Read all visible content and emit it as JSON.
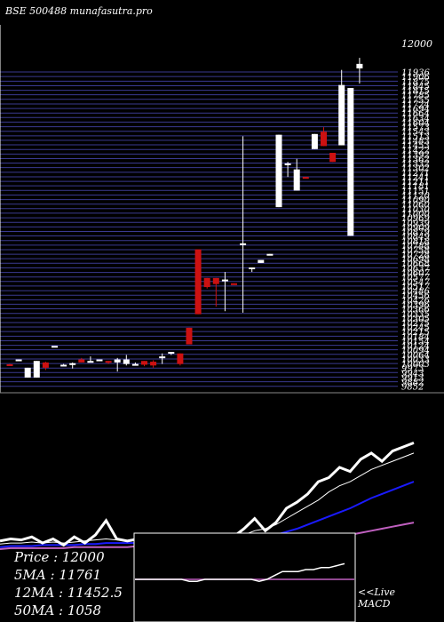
{
  "header": {
    "title": "BSE 500488  munafasutra.pro"
  },
  "chart_data": {
    "type": "candlestick",
    "price_axis": {
      "ylim": [
        9821,
        12060
      ],
      "top_label": "12000",
      "ticks": [
        11936,
        11906,
        11875,
        11845,
        11815,
        11785,
        11755,
        11724,
        11694,
        11664,
        11634,
        11604,
        11573,
        11543,
        11513,
        11483,
        11453,
        11422,
        11392,
        11362,
        11332,
        11302,
        11271,
        11241,
        11211,
        11181,
        11151,
        11120,
        11090,
        11060,
        11030,
        11000,
        10969,
        10939,
        10909,
        10879,
        10849,
        10818,
        10788,
        10758,
        10728,
        10698,
        10668,
        10637,
        10607,
        10577,
        10547,
        10517,
        10486,
        10456,
        10426,
        10396,
        10366,
        10335,
        10305,
        10275,
        10245,
        10215,
        10184,
        10154,
        10124,
        10094,
        10064,
        10033,
        10003,
        9973,
        9943,
        9913,
        9882,
        9852
      ]
    },
    "candles": [
      {
        "o": 9998,
        "h": 10000,
        "l": 9995,
        "c": 9997,
        "up": false
      },
      {
        "o": 10020,
        "h": 10030,
        "l": 10020,
        "c": 10030,
        "up": true
      },
      {
        "o": 9975,
        "h": 9975,
        "l": 9910,
        "c": 9910,
        "up": true
      },
      {
        "o": 10020,
        "h": 10020,
        "l": 9910,
        "c": 9910,
        "up": true
      },
      {
        "o": 10010,
        "h": 10015,
        "l": 9960,
        "c": 9975,
        "up": false
      },
      {
        "o": 10120,
        "h": 10120,
        "l": 10120,
        "c": 10120,
        "up": true
      },
      {
        "o": 9995,
        "h": 10000,
        "l": 9990,
        "c": 9990,
        "up": true
      },
      {
        "o": 10000,
        "h": 10010,
        "l": 9970,
        "c": 10005,
        "up": true
      },
      {
        "o": 10030,
        "h": 10040,
        "l": 10010,
        "c": 10010,
        "up": false
      },
      {
        "o": 10010,
        "h": 10050,
        "l": 10010,
        "c": 10020,
        "up": true
      },
      {
        "o": 10030,
        "h": 10030,
        "l": 10030,
        "c": 10030,
        "up": true
      },
      {
        "o": 10020,
        "h": 10020,
        "l": 10000,
        "c": 10010,
        "up": false
      },
      {
        "o": 10010,
        "h": 10040,
        "l": 9950,
        "c": 10030,
        "up": true
      },
      {
        "o": 10030,
        "h": 10060,
        "l": 9990,
        "c": 10000,
        "up": true
      },
      {
        "o": 10000,
        "h": 10010,
        "l": 9995,
        "c": 10000,
        "up": true
      },
      {
        "o": 9995,
        "h": 10020,
        "l": 9985,
        "c": 10020,
        "up": false
      },
      {
        "o": 10015,
        "h": 10025,
        "l": 9975,
        "c": 9990,
        "up": false
      },
      {
        "o": 10050,
        "h": 10070,
        "l": 10000,
        "c": 10050,
        "up": true
      },
      {
        "o": 10080,
        "h": 10080,
        "l": 10060,
        "c": 10070,
        "up": true
      },
      {
        "o": 10070,
        "h": 10070,
        "l": 9990,
        "c": 10000,
        "up": false
      },
      {
        "o": 10240,
        "h": 10240,
        "l": 10130,
        "c": 10130,
        "up": false
      },
      {
        "o": 10760,
        "h": 10760,
        "l": 10330,
        "c": 10330,
        "up": false
      },
      {
        "o": 10570,
        "h": 10570,
        "l": 10500,
        "c": 10510,
        "up": false
      },
      {
        "o": 10570,
        "h": 10570,
        "l": 10380,
        "c": 10530,
        "up": false
      },
      {
        "o": 10560,
        "h": 10610,
        "l": 10350,
        "c": 10560,
        "up": true
      },
      {
        "o": 10535,
        "h": 10535,
        "l": 10530,
        "c": 10532,
        "up": false
      },
      {
        "o": 10800,
        "h": 11510,
        "l": 10340,
        "c": 10800,
        "up": true
      },
      {
        "o": 10630,
        "h": 10640,
        "l": 10610,
        "c": 10640,
        "up": true
      },
      {
        "o": 10670,
        "h": 10690,
        "l": 10670,
        "c": 10690,
        "up": true
      },
      {
        "o": 10720,
        "h": 10730,
        "l": 10720,
        "c": 10730,
        "up": true
      },
      {
        "o": 11520,
        "h": 11520,
        "l": 11040,
        "c": 11040,
        "up": true
      },
      {
        "o": 11330,
        "h": 11340,
        "l": 11240,
        "c": 11330,
        "up": true
      },
      {
        "o": 11150,
        "h": 11360,
        "l": 11150,
        "c": 11290,
        "up": true
      },
      {
        "o": 11240,
        "h": 11240,
        "l": 11230,
        "c": 11230,
        "up": false
      },
      {
        "o": 11525,
        "h": 11525,
        "l": 11425,
        "c": 11425,
        "up": true
      },
      {
        "o": 11540,
        "h": 11570,
        "l": 11445,
        "c": 11445,
        "up": false
      },
      {
        "o": 11400,
        "h": 11400,
        "l": 11340,
        "c": 11340,
        "up": false
      },
      {
        "o": 11450,
        "h": 11950,
        "l": 11450,
        "c": 11850,
        "up": true
      },
      {
        "o": 10850,
        "h": 11830,
        "l": 10850,
        "c": 11830,
        "up": true
      },
      {
        "o": 11960,
        "h": 12030,
        "l": 11860,
        "c": 11990,
        "up": true
      }
    ],
    "indicators": {
      "price_line": [
        8,
        10,
        9,
        12,
        6,
        10,
        4,
        12,
        6,
        14,
        28,
        10,
        8,
        10,
        12,
        10,
        12,
        14,
        10,
        6,
        12,
        8,
        12,
        20,
        30,
        18,
        26,
        40,
        46,
        54,
        66,
        70,
        80,
        76,
        88,
        94,
        86,
        96,
        100,
        104
      ],
      "ma5_line": [
        5,
        6,
        6,
        7,
        6,
        7,
        6,
        7,
        8,
        9,
        10,
        9,
        8,
        9,
        10,
        11,
        10,
        11,
        12,
        10,
        10,
        11,
        12,
        14,
        18,
        20,
        24,
        30,
        36,
        42,
        48,
        56,
        62,
        66,
        72,
        78,
        82,
        86,
        90,
        94
      ],
      "ma12_line": [
        2,
        3,
        3,
        3,
        4,
        4,
        4,
        4,
        5,
        5,
        6,
        6,
        6,
        6,
        7,
        7,
        7,
        8,
        8,
        8,
        8,
        8,
        9,
        10,
        11,
        12,
        14,
        17,
        20,
        24,
        28,
        32,
        36,
        40,
        45,
        50,
        54,
        58,
        62,
        66
      ],
      "ma50_line": [
        0,
        1,
        1,
        1,
        1,
        1,
        1,
        2,
        2,
        2,
        2,
        2,
        2,
        3,
        3,
        3,
        3,
        3,
        3,
        3,
        3,
        3,
        3,
        3,
        3,
        4,
        4,
        4,
        5,
        6,
        8,
        10,
        12,
        14,
        16,
        18,
        20,
        22,
        24,
        26
      ]
    },
    "macd": {
      "line": [
        0,
        0,
        0,
        0,
        0,
        0,
        0,
        -1,
        -1,
        0,
        0,
        0,
        0,
        0,
        0,
        0,
        -1,
        0,
        2,
        4,
        4,
        4,
        5,
        5,
        6,
        6,
        7,
        8
      ]
    }
  },
  "legend": {
    "price": "Price   : 12000",
    "ma5": "5MA : 11761",
    "ma12": "12MA : 11452.5",
    "ma50": "50MA : 1058"
  },
  "macd_label": {
    "line1": "<<Live",
    "line2": "MACD"
  },
  "colors": {
    "background": "#000000",
    "grid": "#3a3a90",
    "candle_up": "#ffffff",
    "candle_down": "#cc1111",
    "ma5": "#ffffff",
    "ma12": "#1a1aff",
    "ma50": "#c060c0",
    "text": "#ffffff"
  }
}
